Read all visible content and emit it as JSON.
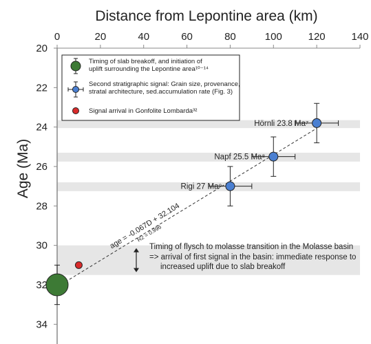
{
  "chart_data": {
    "type": "scatter",
    "title": "",
    "xlabel": "Distance from Lepontine area (km)",
    "ylabel": "Age (Ma)",
    "xlim": [
      0,
      140
    ],
    "ylim": [
      20,
      35
    ],
    "y_inverted": true,
    "x_axis_position": "top",
    "xticks": [
      "0",
      "20",
      "40",
      "60",
      "80",
      "100",
      "120",
      "140"
    ],
    "yticks": [
      "20",
      "22",
      "24",
      "26",
      "28",
      "30",
      "32",
      "34"
    ],
    "series": [
      {
        "name": "Second stratigraphic signal: Grain size, provenance, stratal architecture, sed.accumulation rate (Fig. 3)",
        "color": "#4a7fd1",
        "points": [
          {
            "x": 120,
            "y": 23.8,
            "xerr": 10,
            "yerr_minus": 1.0,
            "yerr_plus": 1.0,
            "label": "Hörnli 23.8 Ma⁷"
          },
          {
            "x": 100,
            "y": 25.5,
            "xerr": 10,
            "yerr_minus": 1.0,
            "yerr_plus": 1.0,
            "label": "Napf 25.5 Ma⁸"
          },
          {
            "x": 80,
            "y": 27.0,
            "xerr": 10,
            "yerr_minus": 1.0,
            "yerr_plus": 1.0,
            "label": "Rigi 27 Ma⁹"
          }
        ]
      },
      {
        "name": "Timing of slab breakoff, and initiation of uplift surrounding the Lepontine area¹⁰⁻¹⁴",
        "color": "#3d7a35",
        "points": [
          {
            "x": 0,
            "y": 32.0,
            "yerr_minus": 1.0,
            "yerr_plus": 1.0
          }
        ]
      },
      {
        "name": "Signal arrival in Gonfolite Lombarda³²",
        "color": "#d92b2b",
        "points": [
          {
            "x": 10,
            "y": 31.0
          }
        ]
      }
    ],
    "shaded_bands": [
      {
        "y_from": 23.65,
        "y_to": 24.05
      },
      {
        "y_from": 25.3,
        "y_to": 25.75
      },
      {
        "y_from": 26.8,
        "y_to": 27.25
      },
      {
        "y_from": 30.0,
        "y_to": 31.5
      }
    ],
    "fit_line": {
      "x": [
        0,
        120
      ],
      "y": [
        32.104,
        24.064
      ]
    },
    "fit_equation": "age = -0.067D + 32.104",
    "fit_r2": "R2 = 0.996",
    "annotation_lines": [
      "Timing of flysch to molasse transition in the Molasse basin",
      "=> arrival of first signal in the basin: immediate response to",
      "increased uplift due to slab breakoff"
    ],
    "annotation_arrow": {
      "y_from": 30.0,
      "y_to": 31.5
    },
    "legend": {
      "placement": "top-left",
      "items": [
        {
          "text_lines": [
            "Timing of slab breakoff, and initiation of",
            "uplift surrounding the Lepontine area¹⁰⁻¹⁴"
          ]
        },
        {
          "text_lines": [
            "Second stratigraphic signal: Grain size, provenance,",
            "stratal architecture, sed.accumulation rate (Fig. 3)"
          ]
        },
        {
          "text_lines": [
            "Signal arrival in Gonfolite Lombarda³²"
          ]
        }
      ]
    },
    "colors": {
      "band": "#e6e6e6",
      "fit": "#333333",
      "axis": "#888888"
    }
  }
}
